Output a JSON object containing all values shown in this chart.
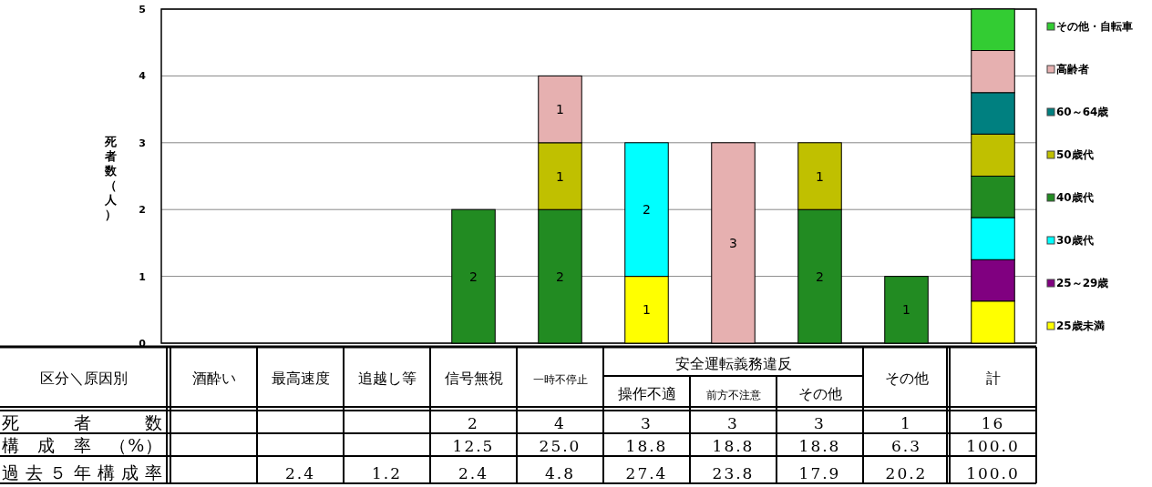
{
  "chart_data": [
    {
      "type": "bar",
      "stacked": true,
      "ylabel": "死者数（人）",
      "ylim": [
        0,
        5
      ],
      "yticks": [
        0,
        1,
        2,
        3,
        4,
        5
      ],
      "grid": "y",
      "legend": "right",
      "tick_labels": "y",
      "categories": [
        null,
        null,
        null,
        null,
        null,
        null,
        null,
        null,
        null,
        null
      ],
      "series": [
        {
          "name": "25歳未満",
          "color": "#ffff00",
          "values": [
            null,
            null,
            null,
            null,
            null,
            1,
            null,
            null,
            null,
            0.63
          ],
          "value_labels": [
            null,
            null,
            null,
            null,
            null,
            "1",
            null,
            null,
            null,
            null
          ]
        },
        {
          "name": "25～29歳",
          "color": "#800080",
          "values": [
            null,
            null,
            null,
            null,
            null,
            null,
            null,
            null,
            null,
            0.62
          ],
          "value_labels": [
            null,
            null,
            null,
            null,
            null,
            null,
            null,
            null,
            null,
            null
          ]
        },
        {
          "name": "30歳代",
          "color": "#00ffff",
          "values": [
            null,
            null,
            null,
            null,
            null,
            2,
            null,
            null,
            null,
            0.63
          ],
          "value_labels": [
            null,
            null,
            null,
            null,
            null,
            "2",
            null,
            null,
            null,
            null
          ]
        },
        {
          "name": "40歳代",
          "color": "#228b22",
          "values": [
            null,
            null,
            null,
            2,
            2,
            null,
            null,
            2,
            1,
            0.62
          ],
          "value_labels": [
            null,
            null,
            null,
            "2",
            "2",
            null,
            null,
            "2",
            "1",
            null
          ]
        },
        {
          "name": "50歳代",
          "color": "#c0c000",
          "values": [
            null,
            null,
            null,
            null,
            1,
            null,
            null,
            1,
            null,
            0.63
          ],
          "value_labels": [
            null,
            null,
            null,
            null,
            "1",
            null,
            null,
            "1",
            null,
            null
          ]
        },
        {
          "name": "60～64歳",
          "color": "#008080",
          "values": [
            null,
            null,
            null,
            null,
            null,
            null,
            null,
            null,
            null,
            0.62
          ],
          "value_labels": [
            null,
            null,
            null,
            null,
            null,
            null,
            null,
            null,
            null,
            null
          ]
        },
        {
          "name": "高齢者",
          "color": "#e6b0b0",
          "values": [
            null,
            null,
            null,
            null,
            1,
            null,
            3,
            null,
            null,
            0.63
          ],
          "value_labels": [
            null,
            null,
            null,
            null,
            "1",
            null,
            "3",
            null,
            null,
            null
          ]
        },
        {
          "name": "その他・自転車",
          "color": "#33cc33",
          "values": [
            null,
            null,
            null,
            null,
            null,
            null,
            null,
            null,
            null,
            0.62
          ],
          "value_labels": [
            null,
            null,
            null,
            null,
            null,
            null,
            null,
            null,
            null,
            null
          ]
        }
      ]
    },
    {
      "type": "other",
      "xlabel": "区分＼原因別",
      "annotations": [
        "安全運転義務違反"
      ],
      "categories": [
        "酒酔い",
        "最高速度",
        "追越し等",
        "信号無視",
        "一時不停止",
        "操作不適",
        "前方不注意",
        "その他",
        "その他",
        "計"
      ],
      "series": [
        {
          "name": "死　者　数",
          "values": [
            null,
            null,
            null,
            2,
            4,
            3,
            3,
            3,
            1,
            16
          ],
          "value_labels": [
            null,
            null,
            null,
            "2",
            "4",
            "3",
            "3",
            "3",
            "1",
            "16"
          ]
        },
        {
          "name": "構　成　率　（%）",
          "values": [
            null,
            null,
            null,
            12.5,
            25.0,
            18.8,
            18.8,
            18.8,
            6.3,
            100.0
          ],
          "value_labels": [
            null,
            null,
            null,
            "12.5",
            "25.0",
            "18.8",
            "18.8",
            "18.8",
            "6.3",
            "100.0"
          ]
        },
        {
          "name": "過去５年構成率",
          "values": [
            null,
            2.4,
            1.2,
            2.4,
            4.8,
            27.4,
            23.8,
            17.9,
            20.2,
            100.0
          ],
          "value_labels": [
            null,
            "2.4",
            "1.2",
            "2.4",
            "4.8",
            "27.4",
            "23.8",
            "17.9",
            "20.2",
            "100.0"
          ]
        }
      ]
    }
  ]
}
